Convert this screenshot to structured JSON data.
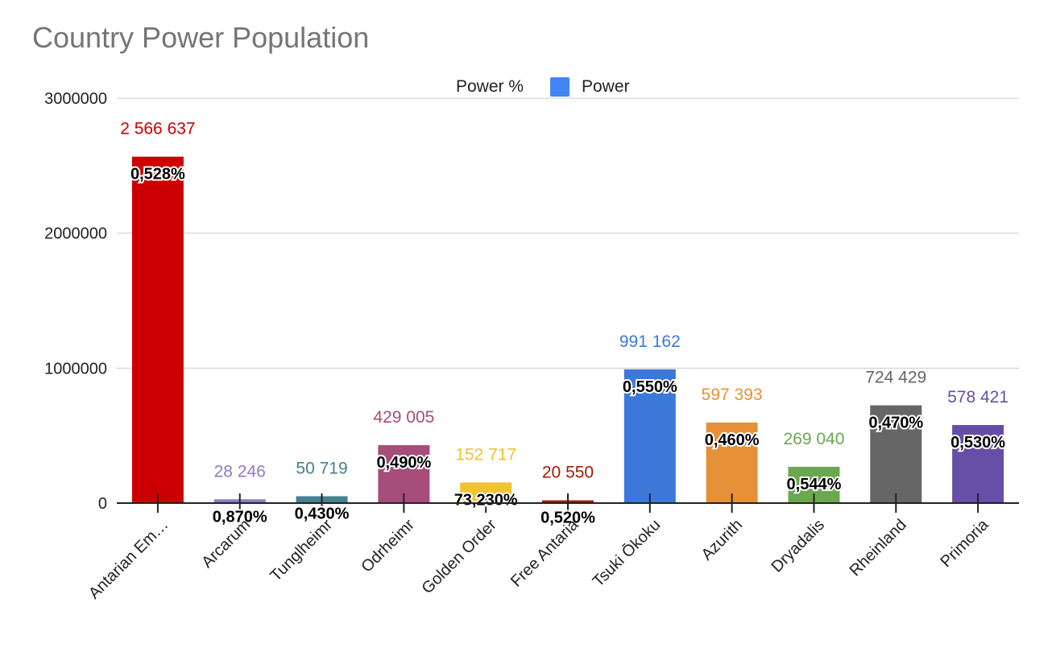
{
  "title": "Country Power Population",
  "legend": [
    {
      "label": "Power %",
      "color": null
    },
    {
      "label": "Power",
      "color": "#4285f4"
    }
  ],
  "chart_data": {
    "type": "bar",
    "title": "Country Power Population",
    "xlabel": "",
    "ylabel": "",
    "ylim": [
      0,
      3000000
    ],
    "yticks": [
      "0",
      "1000000",
      "2000000",
      "3000000"
    ],
    "grid": true,
    "legend_position": "top",
    "categories": [
      "Antarian Em…",
      "Arcarum",
      "Tunglheimr",
      "Odrheimr",
      "Golden Order",
      "Free Antaria",
      "Tsuki Ōkoku",
      "Azurith",
      "Dryadalis",
      "Rheinland",
      "Primoria"
    ],
    "series": [
      {
        "name": "Power",
        "values": [
          2566637,
          28246,
          50719,
          429005,
          152717,
          20550,
          991162,
          597393,
          269040,
          724429,
          578421
        ],
        "value_labels": [
          "2 566 637",
          "28 246",
          "50 719",
          "429 005",
          "152 717",
          "20 550",
          "991 162",
          "597 393",
          "269 040",
          "724 429",
          "578 421"
        ],
        "colors": [
          "#cc0000",
          "#8e7cc3",
          "#45818e",
          "#a64d79",
          "#f1c232",
          "#a61c00",
          "#3c78d8",
          "#e69138",
          "#6aa84f",
          "#666666",
          "#674ea7"
        ]
      },
      {
        "name": "Power %",
        "labels": [
          "0,528%",
          "0,870%",
          "0,430%",
          "0,490%",
          "73,230%",
          "0,520%",
          "0,550%",
          "0,460%",
          "0,544%",
          "0,470%",
          "0,530%"
        ]
      }
    ]
  }
}
